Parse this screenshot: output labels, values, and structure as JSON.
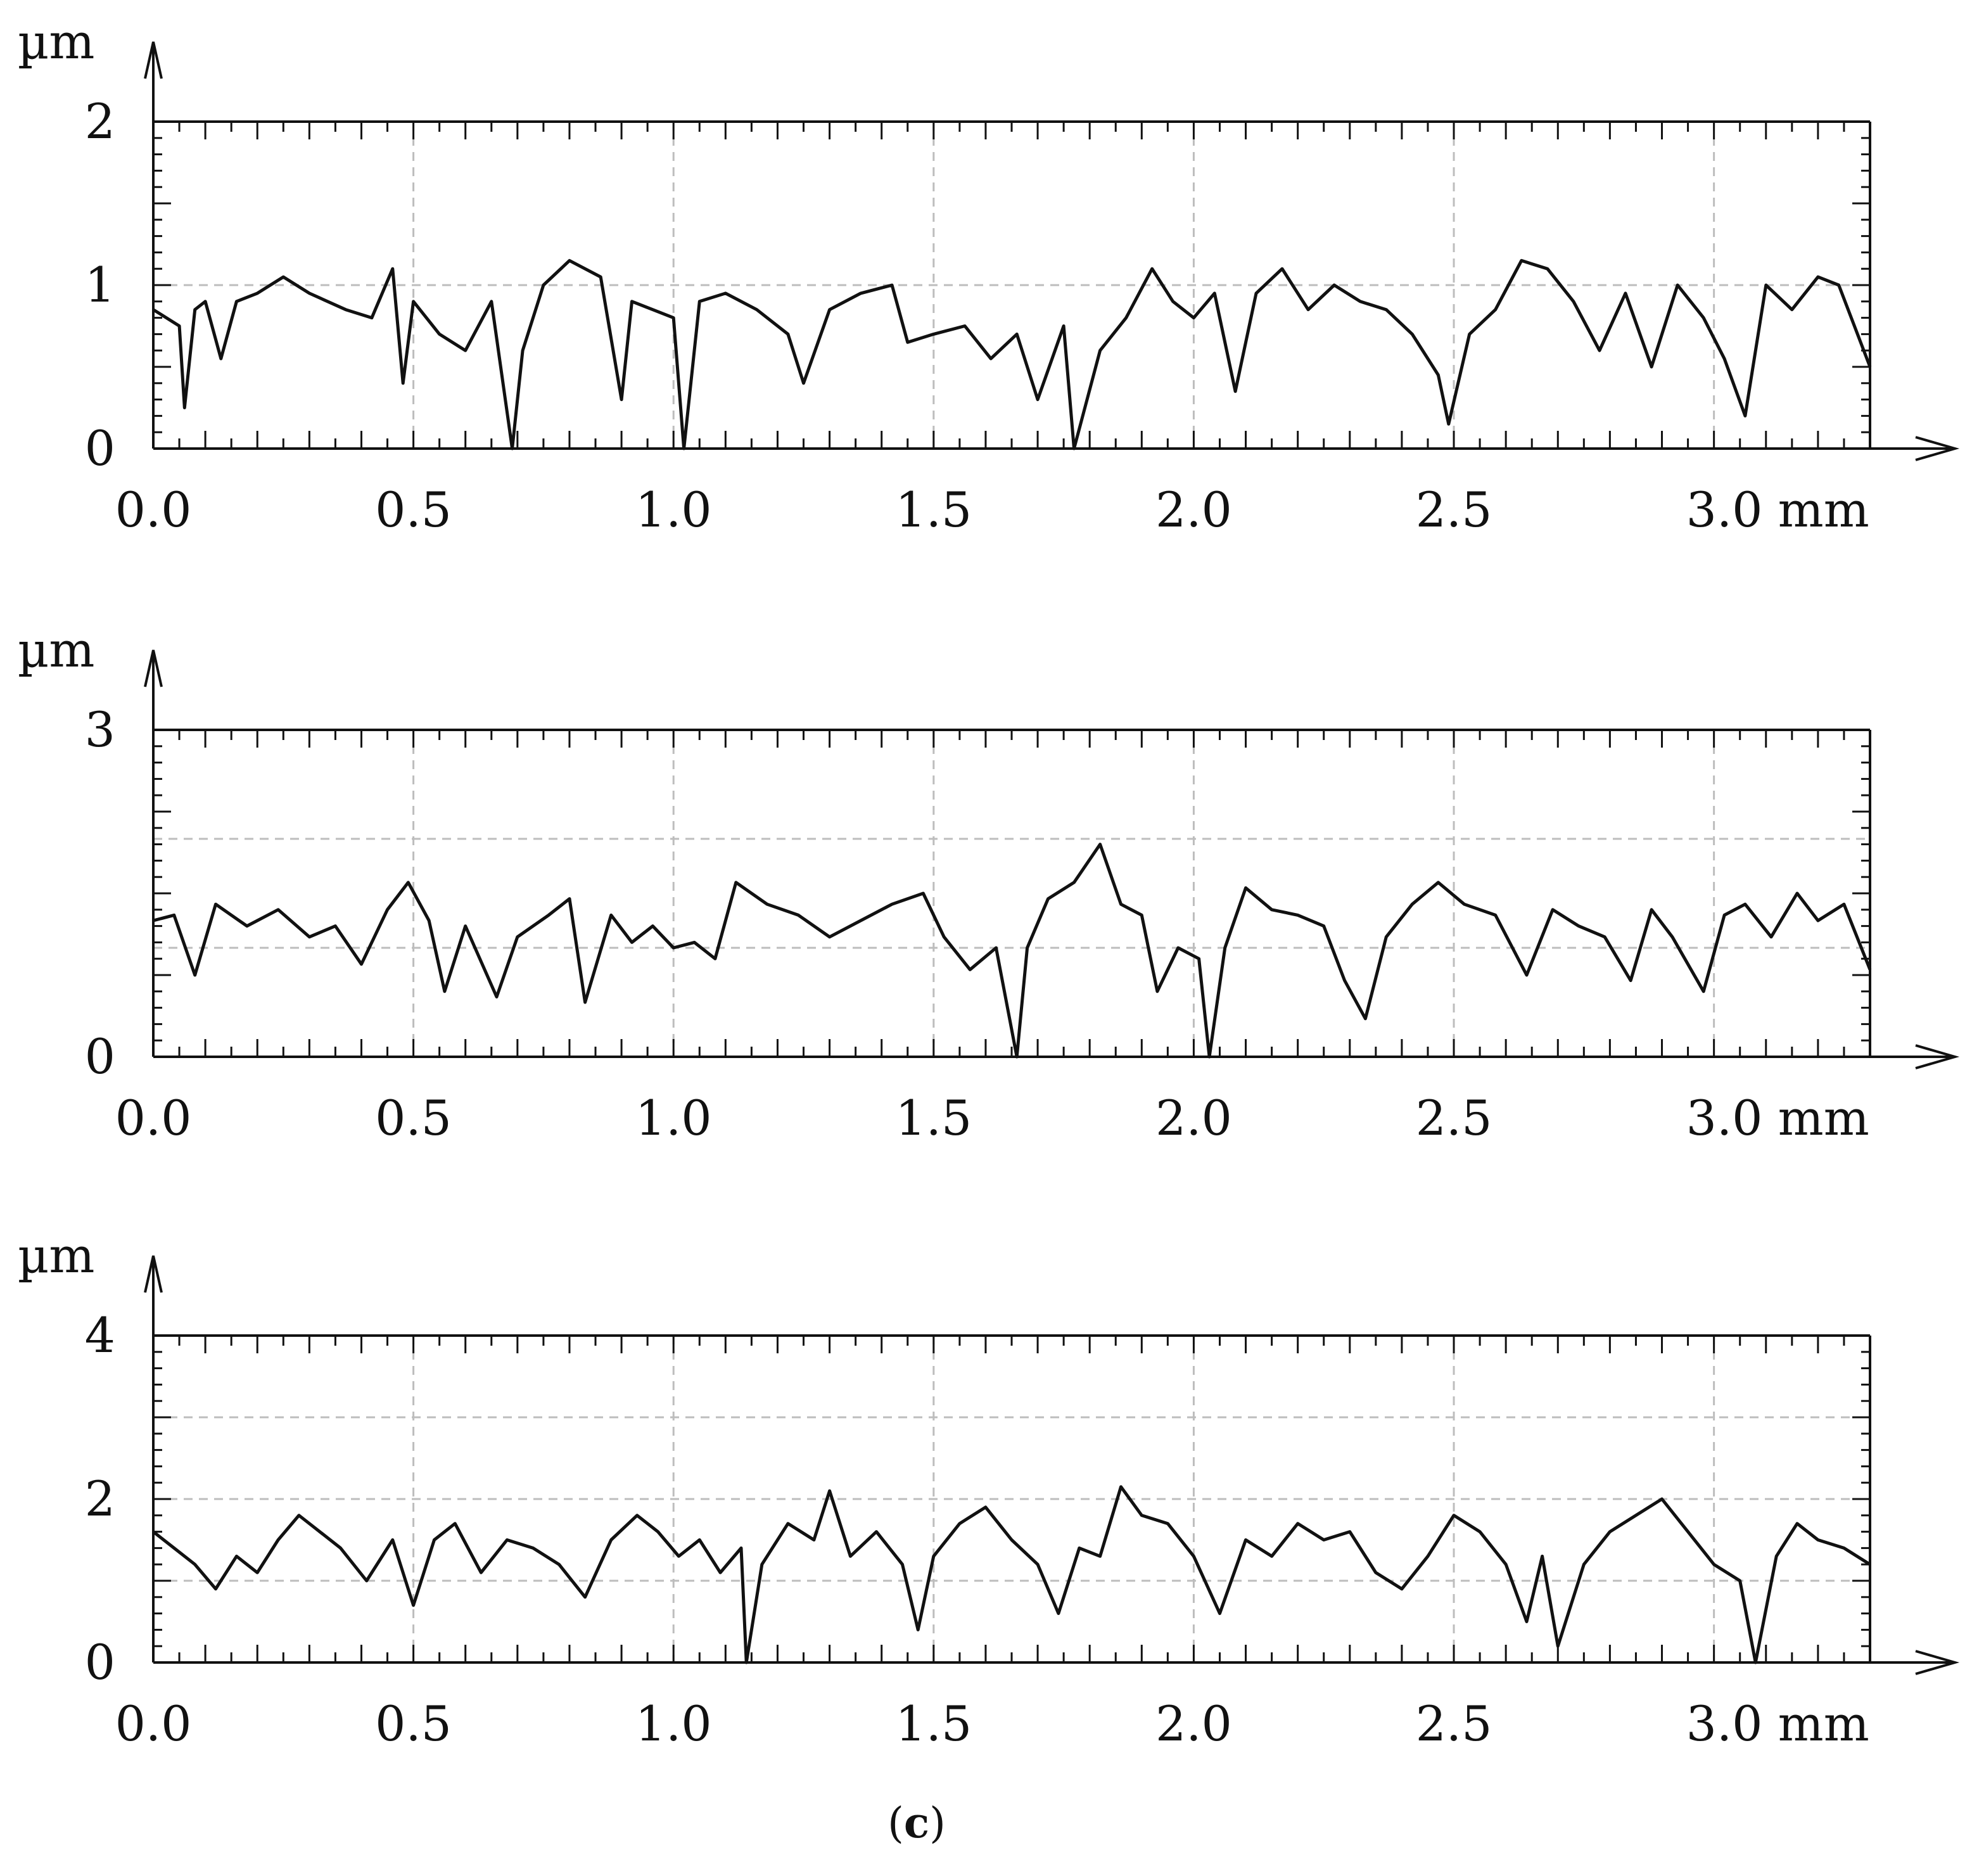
{
  "caption": {
    "open": "(",
    "letter": "c",
    "close": ")"
  },
  "chart_data": [
    {
      "type": "line",
      "ylabel": "µm",
      "xlabel": "mm",
      "xlim": [
        0,
        3.3
      ],
      "ylim": [
        0,
        2
      ],
      "x_ticks": [
        0.0,
        0.5,
        1.0,
        1.5,
        2.0,
        2.5,
        3.0
      ],
      "x_tick_labels": [
        "0.0",
        "0.5",
        "1.0",
        "1.5",
        "2.0",
        "2.5",
        "3.0 mm"
      ],
      "y_ticks": [
        0,
        1,
        2
      ],
      "y_tick_labels": [
        "0",
        "1",
        "2"
      ],
      "grid": true,
      "series": [
        {
          "x": [
            0.0,
            0.05,
            0.06,
            0.08,
            0.1,
            0.13,
            0.16,
            0.2,
            0.25,
            0.3,
            0.37,
            0.42,
            0.46,
            0.48,
            0.5,
            0.55,
            0.6,
            0.65,
            0.69,
            0.71,
            0.75,
            0.8,
            0.86,
            0.9,
            0.92,
            0.96,
            1.0,
            1.02,
            1.05,
            1.1,
            1.16,
            1.22,
            1.25,
            1.3,
            1.36,
            1.42,
            1.45,
            1.5,
            1.56,
            1.61,
            1.66,
            1.7,
            1.75,
            1.77,
            1.82,
            1.87,
            1.92,
            1.96,
            2.0,
            2.04,
            2.08,
            2.12,
            2.17,
            2.22,
            2.27,
            2.32,
            2.37,
            2.42,
            2.47,
            2.49,
            2.53,
            2.58,
            2.63,
            2.68,
            2.73,
            2.78,
            2.83,
            2.88,
            2.93,
            2.98,
            3.02,
            3.06,
            3.1,
            3.15,
            3.2,
            3.24,
            3.3
          ],
          "y": [
            0.85,
            0.75,
            0.25,
            0.85,
            0.9,
            0.55,
            0.9,
            0.95,
            1.05,
            0.95,
            0.85,
            0.8,
            1.1,
            0.4,
            0.9,
            0.7,
            0.6,
            0.9,
            0.0,
            0.6,
            1.0,
            1.15,
            1.05,
            0.3,
            0.9,
            0.85,
            0.8,
            0.0,
            0.9,
            0.95,
            0.85,
            0.7,
            0.4,
            0.85,
            0.95,
            1.0,
            0.65,
            0.7,
            0.75,
            0.55,
            0.7,
            0.3,
            0.75,
            0.0,
            0.6,
            0.8,
            1.1,
            0.9,
            0.8,
            0.95,
            0.35,
            0.95,
            1.1,
            0.85,
            1.0,
            0.9,
            0.85,
            0.7,
            0.45,
            0.15,
            0.7,
            0.85,
            1.15,
            1.1,
            0.9,
            0.6,
            0.95,
            0.5,
            1.0,
            0.8,
            0.55,
            0.2,
            1.0,
            0.85,
            1.05,
            1.0,
            0.5
          ]
        }
      ]
    },
    {
      "type": "line",
      "ylabel": "µm",
      "xlabel": "mm",
      "xlim": [
        0,
        3.3
      ],
      "ylim": [
        0,
        3
      ],
      "x_ticks": [
        0.0,
        0.5,
        1.0,
        1.5,
        2.0,
        2.5,
        3.0
      ],
      "x_tick_labels": [
        "0.0",
        "0.5",
        "1.0",
        "1.5",
        "2.0",
        "2.5",
        "3.0 mm"
      ],
      "y_ticks": [
        0,
        3
      ],
      "y_tick_labels": [
        "0",
        "3"
      ],
      "grid": true,
      "series": [
        {
          "x": [
            0.0,
            0.04,
            0.08,
            0.12,
            0.18,
            0.24,
            0.3,
            0.35,
            0.4,
            0.45,
            0.49,
            0.53,
            0.56,
            0.6,
            0.66,
            0.7,
            0.76,
            0.8,
            0.83,
            0.88,
            0.92,
            0.96,
            1.0,
            1.04,
            1.08,
            1.12,
            1.18,
            1.24,
            1.3,
            1.36,
            1.42,
            1.48,
            1.52,
            1.57,
            1.62,
            1.66,
            1.68,
            1.72,
            1.77,
            1.82,
            1.86,
            1.9,
            1.93,
            1.97,
            2.01,
            2.03,
            2.06,
            2.1,
            2.15,
            2.2,
            2.25,
            2.29,
            2.33,
            2.37,
            2.42,
            2.47,
            2.52,
            2.58,
            2.64,
            2.69,
            2.74,
            2.79,
            2.84,
            2.88,
            2.92,
            2.98,
            3.02,
            3.06,
            3.11,
            3.16,
            3.2,
            3.25,
            3.3
          ],
          "y": [
            1.25,
            1.3,
            0.75,
            1.4,
            1.2,
            1.35,
            1.1,
            1.2,
            0.85,
            1.35,
            1.6,
            1.25,
            0.6,
            1.2,
            0.55,
            1.1,
            1.3,
            1.45,
            0.5,
            1.3,
            1.05,
            1.2,
            1.0,
            1.05,
            0.9,
            1.6,
            1.4,
            1.3,
            1.1,
            1.25,
            1.4,
            1.5,
            1.1,
            0.8,
            1.0,
            0.0,
            1.0,
            1.45,
            1.6,
            1.95,
            1.4,
            1.3,
            0.6,
            1.0,
            0.9,
            0.0,
            1.0,
            1.55,
            1.35,
            1.3,
            1.2,
            0.7,
            0.35,
            1.1,
            1.4,
            1.6,
            1.4,
            1.3,
            0.75,
            1.35,
            1.2,
            1.1,
            0.7,
            1.35,
            1.1,
            0.6,
            1.3,
            1.4,
            1.1,
            1.5,
            1.25,
            1.4,
            0.8
          ]
        }
      ]
    },
    {
      "type": "line",
      "ylabel": "µm",
      "xlabel": "mm",
      "xlim": [
        0,
        3.3
      ],
      "ylim": [
        0,
        4
      ],
      "x_ticks": [
        0.0,
        0.5,
        1.0,
        1.5,
        2.0,
        2.5,
        3.0
      ],
      "x_tick_labels": [
        "0.0",
        "0.5",
        "1.0",
        "1.5",
        "2.0",
        "2.5",
        "3.0 mm"
      ],
      "y_ticks": [
        0,
        2,
        4
      ],
      "y_tick_labels": [
        "0",
        "2",
        "4"
      ],
      "grid": true,
      "series": [
        {
          "x": [
            0.0,
            0.04,
            0.08,
            0.12,
            0.16,
            0.2,
            0.24,
            0.28,
            0.32,
            0.36,
            0.41,
            0.46,
            0.5,
            0.54,
            0.58,
            0.63,
            0.68,
            0.73,
            0.78,
            0.83,
            0.88,
            0.93,
            0.97,
            1.01,
            1.05,
            1.09,
            1.13,
            1.14,
            1.17,
            1.22,
            1.27,
            1.3,
            1.34,
            1.39,
            1.44,
            1.47,
            1.5,
            1.55,
            1.6,
            1.65,
            1.7,
            1.74,
            1.78,
            1.82,
            1.86,
            1.9,
            1.95,
            2.0,
            2.05,
            2.1,
            2.15,
            2.2,
            2.25,
            2.3,
            2.35,
            2.4,
            2.45,
            2.5,
            2.55,
            2.6,
            2.64,
            2.67,
            2.7,
            2.75,
            2.8,
            2.85,
            2.9,
            2.95,
            3.0,
            3.05,
            3.08,
            3.12,
            3.16,
            3.2,
            3.25,
            3.3
          ],
          "y": [
            1.6,
            1.4,
            1.2,
            0.9,
            1.3,
            1.1,
            1.5,
            1.8,
            1.6,
            1.4,
            1.0,
            1.5,
            0.7,
            1.5,
            1.7,
            1.1,
            1.5,
            1.4,
            1.2,
            0.8,
            1.5,
            1.8,
            1.6,
            1.3,
            1.5,
            1.1,
            1.4,
            0.0,
            1.2,
            1.7,
            1.5,
            2.1,
            1.3,
            1.6,
            1.2,
            0.4,
            1.3,
            1.7,
            1.9,
            1.5,
            1.2,
            0.6,
            1.4,
            1.3,
            2.15,
            1.8,
            1.7,
            1.3,
            0.6,
            1.5,
            1.3,
            1.7,
            1.5,
            1.6,
            1.1,
            0.9,
            1.3,
            1.8,
            1.6,
            1.2,
            0.5,
            1.3,
            0.2,
            1.2,
            1.6,
            1.8,
            2.0,
            1.6,
            1.2,
            1.0,
            0.0,
            1.3,
            1.7,
            1.5,
            1.4,
            1.2
          ]
        }
      ]
    }
  ]
}
